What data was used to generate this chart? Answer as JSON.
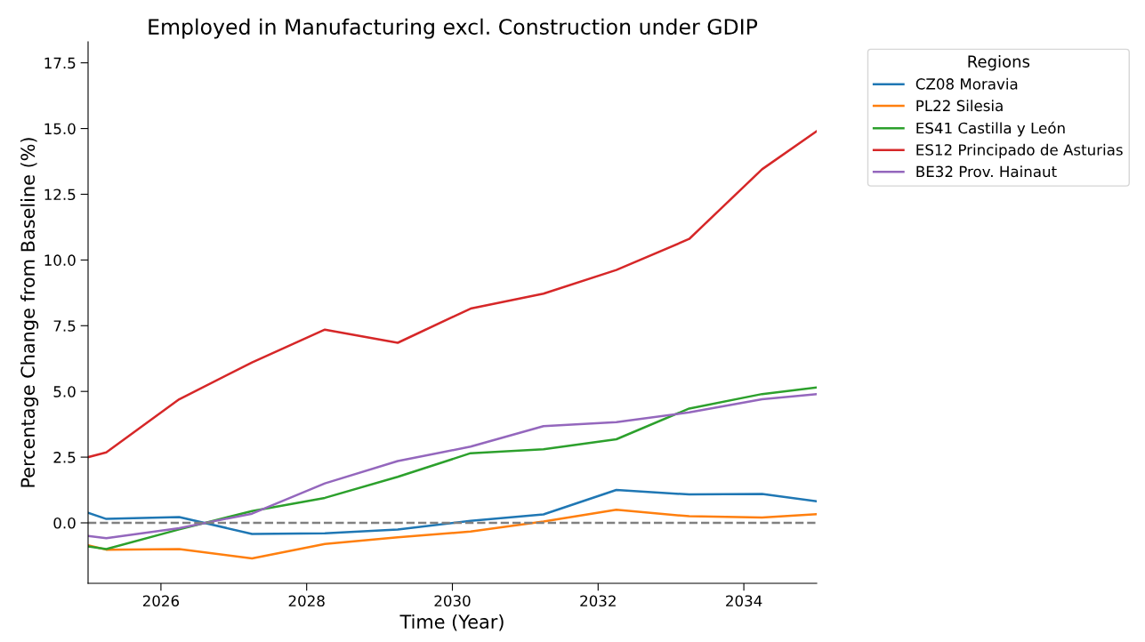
{
  "chart_data": {
    "type": "line",
    "title": "Employed in Manufacturing excl. Construction under GDIP",
    "xlabel": "Time (Year)",
    "ylabel": "Percentage Change from Baseline (%)",
    "legend_title": "Regions",
    "legend": "top right",
    "grid": false,
    "xlim": [
      2025,
      2035
    ],
    "xticks": [
      2026,
      2028,
      2030,
      2032,
      2034
    ],
    "ylim": [
      -2.3,
      18.3
    ],
    "yticks": [
      {
        "value": 0,
        "label": "0.0"
      },
      2.5,
      {
        "value": 5,
        "label": "5.0"
      },
      7.5,
      {
        "value": 10,
        "label": "10.0"
      },
      12.5,
      {
        "value": 15,
        "label": "15.0"
      },
      17.5
    ],
    "x": [
      2025,
      2025.25,
      2026.25,
      2027.25,
      2028.25,
      2029.25,
      2030.25,
      2031.25,
      2032.25,
      2033.25,
      2034.25,
      2035
    ],
    "ref_lines": [
      {
        "axis": "y",
        "value": 0,
        "label": null,
        "color": "#808080",
        "line_style": "dashed"
      }
    ],
    "series": [
      {
        "name": "CZ08 Moravia",
        "color": "#1f77b4",
        "values": [
          0.38,
          0.15,
          0.22,
          -0.42,
          -0.4,
          -0.25,
          0.08,
          0.32,
          1.25,
          1.08,
          1.1,
          0.82
        ]
      },
      {
        "name": "PL22 Silesia",
        "color": "#ff7f0e",
        "values": [
          -0.85,
          -1.02,
          -1.0,
          -1.35,
          -0.8,
          -0.55,
          -0.33,
          0.05,
          0.5,
          0.25,
          0.2,
          0.33
        ]
      },
      {
        "name": "ES41 Castilla y León",
        "color": "#2ca02c",
        "values": [
          -0.9,
          -1.0,
          -0.25,
          0.45,
          0.95,
          1.75,
          2.65,
          2.8,
          3.18,
          4.35,
          4.9,
          5.15
        ]
      },
      {
        "name": "ES12 Principado de Asturias",
        "color": "#d62728",
        "values": [
          2.5,
          2.68,
          4.7,
          6.1,
          7.35,
          6.85,
          8.15,
          8.72,
          9.62,
          10.8,
          13.45,
          14.9
        ]
      },
      {
        "name": "BE32 Prov. Hainaut",
        "color": "#9467bd",
        "values": [
          -0.5,
          -0.58,
          -0.2,
          0.35,
          1.5,
          2.35,
          2.9,
          3.68,
          3.83,
          4.2,
          4.7,
          4.9
        ]
      }
    ]
  }
}
